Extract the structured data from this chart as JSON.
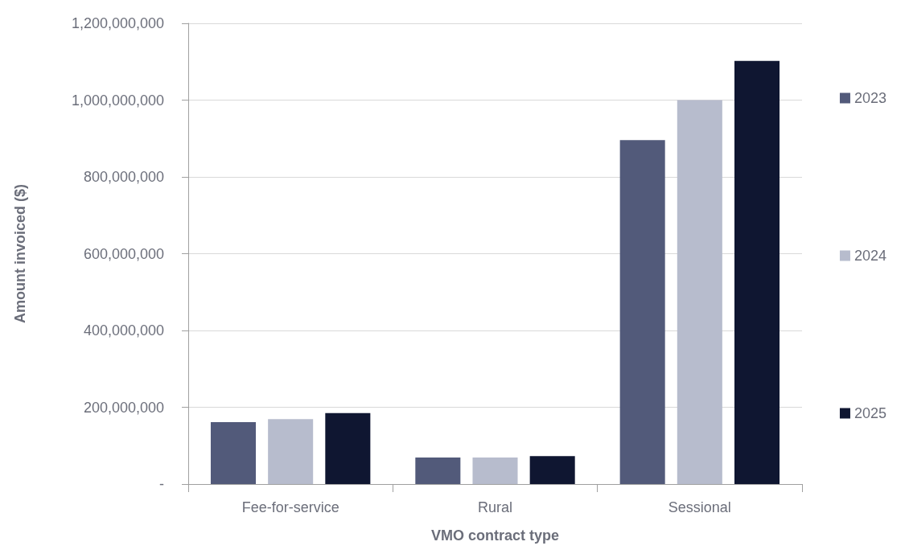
{
  "chart_data": {
    "type": "bar",
    "xlabel": "VMO contract type",
    "ylabel": "Amount invoiced ($)",
    "categories": [
      "Fee-for-service",
      "Rural",
      "Sessional"
    ],
    "series": [
      {
        "name": "2023",
        "color": "#525a7a",
        "values": [
          161000000,
          69000000,
          896000000
        ]
      },
      {
        "name": "2024",
        "color": "#b7bccd",
        "values": [
          169000000,
          69000000,
          1000000000
        ]
      },
      {
        "name": "2025",
        "color": "#0f1631",
        "values": [
          185000000,
          73000000,
          1102000000
        ]
      }
    ],
    "ylim": [
      0,
      1200000000
    ],
    "yticks": [
      {
        "value": 0,
        "label": "-"
      },
      {
        "value": 200000000,
        "label": "200,000,000"
      },
      {
        "value": 400000000,
        "label": "400,000,000"
      },
      {
        "value": 600000000,
        "label": "600,000,000"
      },
      {
        "value": 800000000,
        "label": "800,000,000"
      },
      {
        "value": 1000000000,
        "label": "1,000,000,000"
      },
      {
        "value": 1200000000,
        "label": "1,200,000,000"
      }
    ],
    "grid": "y",
    "legend": "right"
  }
}
